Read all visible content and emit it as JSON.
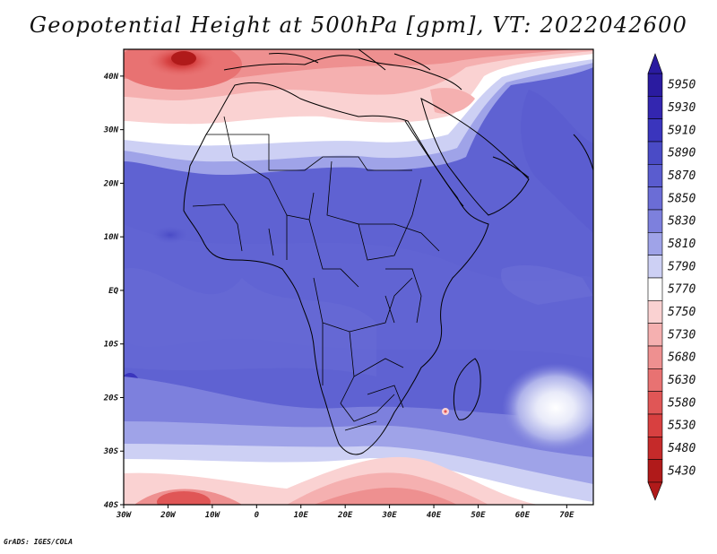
{
  "title": "Geopotential Height at 500hPa [gpm], VT: 2022042600",
  "credit": "GrADS: IGES/COLA",
  "variable": "Geopotential Height at 500hPa",
  "units": "gpm",
  "valid_time": "2022042600",
  "lon_range": [
    -30,
    76
  ],
  "lat_range": [
    -40,
    45
  ],
  "lon_ticks": [
    "30W",
    "20W",
    "10W",
    "0",
    "10E",
    "20E",
    "30E",
    "40E",
    "50E",
    "60E",
    "70E"
  ],
  "lat_ticks": [
    "40N",
    "30N",
    "20N",
    "10N",
    "EQ",
    "10S",
    "20S",
    "30S",
    "40S"
  ],
  "colorbar": {
    "levels": [
      "5950",
      "5930",
      "5910",
      "5890",
      "5870",
      "5850",
      "5830",
      "5810",
      "5790",
      "5770",
      "5750",
      "5730",
      "5680",
      "5630",
      "5580",
      "5530",
      "5480",
      "5430"
    ],
    "colors": [
      "#2a1ba0",
      "#3326b0",
      "#3a35bd",
      "#4a4bc6",
      "#5a5ccf",
      "#6b6dd6",
      "#7d80dd",
      "#9fa3e8",
      "#cdd0f4",
      "#ffffff",
      "#fad2d2",
      "#f5b0b0",
      "#ee9090",
      "#e87272",
      "#e05656",
      "#d84040",
      "#c52a2a",
      "#b01a1a"
    ]
  }
}
